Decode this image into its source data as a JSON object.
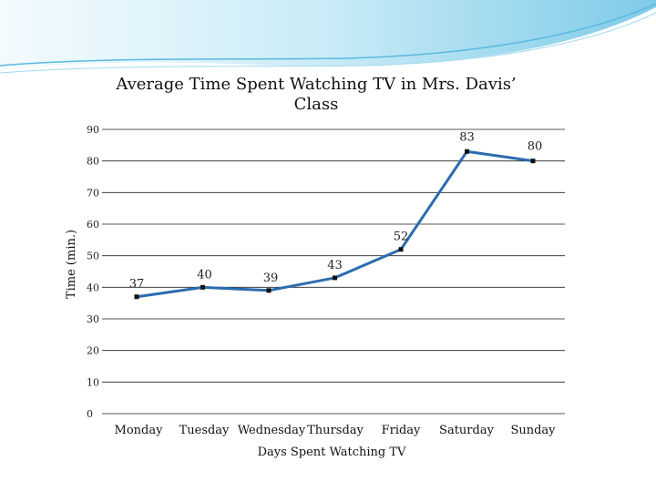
{
  "colors": {
    "series_line": "#2b6cb0",
    "marker": "#111111",
    "banner_light": "#e6f6fc",
    "banner_mid": "#9fd8ee",
    "banner_dark": "#4aaed6"
  },
  "chart_data": {
    "type": "line",
    "title_lines": [
      "Average Time Spent Watching TV in Mrs. Davis’",
      "Class"
    ],
    "xlabel": "Days Spent Watching TV",
    "ylabel": "Time (min.)",
    "categories": [
      "Monday",
      "Tuesday",
      "Wednesday",
      "Thursday",
      "Friday",
      "Saturday",
      "Sunday"
    ],
    "series": [
      {
        "values": [
          37,
          40,
          39,
          43,
          52,
          83,
          80
        ]
      }
    ],
    "data_labels": [
      "37",
      "40",
      "39",
      "43",
      "52",
      "83",
      "80"
    ],
    "ylim": [
      0,
      90
    ],
    "yticks": [
      0,
      10,
      20,
      30,
      40,
      50,
      60,
      70,
      80,
      90
    ],
    "ytick_labels": [
      "0",
      "10",
      "20",
      "30",
      "40",
      "50",
      "60",
      "70",
      "80",
      "90"
    ],
    "grid": true,
    "legend": false
  }
}
